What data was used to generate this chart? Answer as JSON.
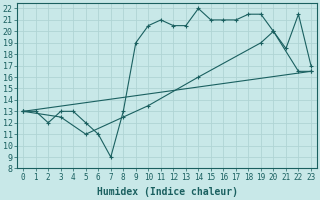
{
  "xlabel": "Humidex (Indice chaleur)",
  "background_color": "#c8e8e8",
  "grid_color": "#b0d4d4",
  "line_color": "#1a6060",
  "xlim": [
    -0.5,
    23.5
  ],
  "ylim": [
    8,
    22.5
  ],
  "xticks": [
    0,
    1,
    2,
    3,
    4,
    5,
    6,
    7,
    8,
    9,
    10,
    11,
    12,
    13,
    14,
    15,
    16,
    17,
    18,
    19,
    20,
    21,
    22,
    23
  ],
  "yticks": [
    8,
    9,
    10,
    11,
    12,
    13,
    14,
    15,
    16,
    17,
    18,
    19,
    20,
    21,
    22
  ],
  "line1_x": [
    0,
    1,
    2,
    3,
    4,
    5,
    6,
    7,
    8,
    9,
    10,
    11,
    12,
    13,
    14,
    15,
    16,
    17,
    18,
    19,
    20,
    21,
    22,
    23
  ],
  "line1_y": [
    13,
    13,
    12,
    13,
    13,
    12,
    11,
    9,
    13,
    19,
    20.5,
    21,
    20.5,
    20.5,
    22,
    21,
    21,
    21,
    21.5,
    21.5,
    20,
    18.5,
    21.5,
    17
  ],
  "line2_x": [
    0,
    3,
    5,
    8,
    10,
    14,
    19,
    20,
    22,
    23
  ],
  "line2_y": [
    13,
    12.5,
    11,
    12.5,
    13.5,
    16,
    19,
    20,
    16.5,
    16.5
  ],
  "line3_x": [
    0,
    23
  ],
  "line3_y": [
    13,
    16.5
  ],
  "xlabel_fontsize": 7,
  "tick_fontsize": 5.5
}
